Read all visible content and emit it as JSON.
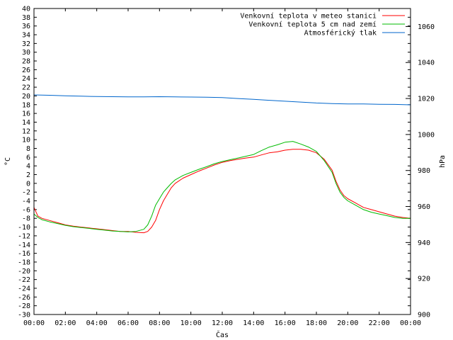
{
  "chart_data": {
    "type": "line",
    "xlabel": "Čas",
    "ylabel": "°C",
    "y2label": "hPa",
    "x_ticks": [
      "00:00",
      "02:00",
      "04:00",
      "06:00",
      "08:00",
      "10:00",
      "12:00",
      "14:00",
      "16:00",
      "18:00",
      "20:00",
      "22:00",
      "00:00"
    ],
    "x_range": [
      0,
      24
    ],
    "ylim": [
      -30,
      40
    ],
    "y_ticks": [
      40,
      38,
      36,
      34,
      32,
      30,
      28,
      26,
      24,
      22,
      20,
      18,
      16,
      14,
      12,
      10,
      8,
      6,
      4,
      2,
      0,
      -2,
      -4,
      -6,
      -8,
      -10,
      -12,
      -14,
      -16,
      -18,
      -20,
      -22,
      -24,
      -26,
      -28,
      -30
    ],
    "y2lim": [
      900,
      1070
    ],
    "y2_ticks": [
      1060,
      1040,
      1020,
      1000,
      980,
      960,
      940,
      920,
      900
    ],
    "legend_position": "top-right",
    "series": [
      {
        "name": "Venkovní teplota v meteo stanici",
        "color": "#ff0000",
        "axis": "y",
        "x": [
          0,
          0.25,
          0.5,
          1,
          1.5,
          2,
          2.5,
          3,
          3.5,
          4,
          4.5,
          5,
          5.5,
          6,
          6.5,
          7,
          7.25,
          7.5,
          7.75,
          8,
          8.25,
          8.5,
          8.75,
          9,
          9.5,
          10,
          10.5,
          11,
          11.5,
          12,
          12.5,
          13,
          13.5,
          14,
          14.5,
          15,
          15.5,
          16,
          16.5,
          17,
          17.5,
          18,
          18.5,
          19,
          19.25,
          19.5,
          19.75,
          20,
          20.5,
          21,
          21.5,
          22,
          22.5,
          23,
          23.5,
          24
        ],
        "values": [
          -5.5,
          -7.5,
          -8,
          -8.5,
          -9,
          -9.5,
          -9.8,
          -10,
          -10.2,
          -10.4,
          -10.6,
          -10.8,
          -11,
          -11,
          -11.2,
          -11.3,
          -11,
          -10,
          -8.5,
          -6,
          -4,
          -2.5,
          -1,
          0,
          1.2,
          2,
          2.8,
          3.5,
          4.2,
          4.8,
          5.2,
          5.5,
          5.8,
          6,
          6.5,
          7,
          7.2,
          7.6,
          7.8,
          7.8,
          7.6,
          7,
          5.5,
          3,
          0.5,
          -1.5,
          -2.8,
          -3.5,
          -4.5,
          -5.5,
          -6,
          -6.5,
          -7,
          -7.5,
          -7.8,
          -8
        ]
      },
      {
        "name": "Venkovní teplota 5 cm nad zemí",
        "color": "#00bb00",
        "axis": "y",
        "x": [
          0,
          0.25,
          0.5,
          1,
          1.5,
          2,
          2.5,
          3,
          3.5,
          4,
          4.5,
          5,
          5.5,
          6,
          6.5,
          7,
          7.25,
          7.5,
          7.75,
          8,
          8.25,
          8.5,
          8.75,
          9,
          9.5,
          10,
          10.5,
          11,
          11.5,
          12,
          12.5,
          13,
          13.5,
          14,
          14.5,
          15,
          15.5,
          16,
          16.5,
          17,
          17.5,
          18,
          18.5,
          19,
          19.25,
          19.5,
          19.75,
          20,
          20.5,
          21,
          21.5,
          22,
          22.5,
          23,
          23.5,
          24
        ],
        "values": [
          -7,
          -7.8,
          -8.3,
          -8.8,
          -9.2,
          -9.6,
          -9.9,
          -10.1,
          -10.3,
          -10.5,
          -10.7,
          -10.9,
          -11,
          -11.1,
          -11,
          -10.5,
          -9.5,
          -7.5,
          -5,
          -3.5,
          -2,
          -1,
          0,
          0.8,
          1.8,
          2.5,
          3.2,
          3.8,
          4.5,
          5,
          5.4,
          5.8,
          6.2,
          6.6,
          7.5,
          8.3,
          8.8,
          9.4,
          9.6,
          9,
          8.3,
          7.3,
          5.2,
          2.5,
          0,
          -2,
          -3.2,
          -4,
          -5,
          -6,
          -6.6,
          -7,
          -7.4,
          -7.8,
          -8,
          -8
        ]
      },
      {
        "name": "Atmosférický tlak",
        "color": "#0066cc",
        "axis": "y2",
        "x": [
          0,
          1,
          2,
          3,
          4,
          5,
          6,
          7,
          8,
          9,
          10,
          11,
          12,
          13,
          14,
          15,
          16,
          17,
          18,
          19,
          20,
          21,
          22,
          23,
          24
        ],
        "values": [
          1022,
          1021.8,
          1021.5,
          1021.3,
          1021.1,
          1021,
          1020.9,
          1020.9,
          1021,
          1020.9,
          1020.8,
          1020.7,
          1020.5,
          1020,
          1019.5,
          1019,
          1018.5,
          1018,
          1017.5,
          1017.2,
          1017,
          1017,
          1016.8,
          1016.7,
          1016.5
        ]
      }
    ]
  }
}
